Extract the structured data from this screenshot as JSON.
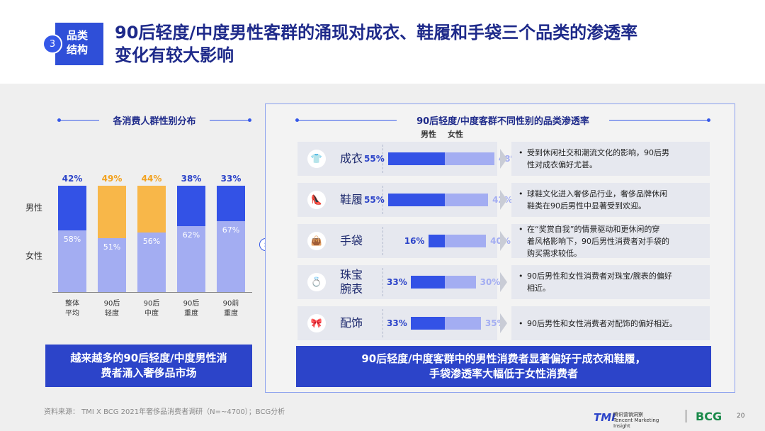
{
  "header": {
    "section_number": "3",
    "section_line1": "品类",
    "section_line2": "结构",
    "title_line1": "90后轻度/中度男性客群的涌现对成衣、鞋履和手袋三个品类的渗透率",
    "title_line2": "变化有较大影响"
  },
  "left": {
    "section_title": "各消费人群性别分布",
    "male_label": "男性",
    "female_label": "女性",
    "callout_line1": "越来越多的90后轻度/中度男性消",
    "callout_line2": "费者涌入奢侈品市场"
  },
  "right": {
    "section_title": "90后轻度/中度客群不同性别的品类渗透率",
    "legend_male": "男性",
    "legend_female": "女性",
    "callout_line1": "90后轻度/中度客群中的男性消费者显著偏好于成衣和鞋履，",
    "callout_line2": "手袋渗透率大幅低于女性消费者",
    "rows": [
      {
        "icon": "shirt-icon",
        "glyph": "👕",
        "name": "成衣",
        "male_label": "55%",
        "female_label": "48%",
        "note_line1": "受到休闲社交和潮流文化的影响，90后男",
        "note_line2": "性对成衣偏好尤甚。"
      },
      {
        "icon": "shoe-icon",
        "glyph": "👠",
        "name": "鞋履",
        "male_label": "55%",
        "female_label": "42%",
        "note_line1": "球鞋文化进入奢侈品行业，奢侈品牌休闲",
        "note_line2": "鞋类在90后男性中显著受到欢迎。"
      },
      {
        "icon": "handbag-icon",
        "glyph": "👜",
        "name": "手袋",
        "male_label": "16%",
        "female_label": "40%",
        "note_line1": "在“奖赏自我”的情景驱动和更休闲的穿",
        "note_line2": "着风格影响下，90后男性消费者对手袋的",
        "note_line3": "购买需求较低。"
      },
      {
        "icon": "ring-icon",
        "glyph": "💍",
        "name_line1": "珠宝",
        "name_line2": "腕表",
        "male_label": "33%",
        "female_label": "30%",
        "note_line1": "90后男性和女性消费者对珠宝/腕表的偏好",
        "note_line2": "相近。"
      },
      {
        "icon": "accessory-icon",
        "glyph": "🎀",
        "name": "配饰",
        "male_label": "33%",
        "female_label": "35%",
        "note_line1": "90后男性和女性消费者对配饰的偏好相近。"
      }
    ]
  },
  "footer": {
    "source": "资料来源：  TMI X BCG 2021年奢侈品消费者调研（N=~4700）；BCG分析",
    "logo_tmi": "TMI",
    "logo_tmi_sub": "腾讯营销洞察 Tencent Marketing Insight",
    "logo_bcg": "BCG",
    "page": "20"
  },
  "colors": {
    "male_dark": "#3352e6",
    "male_highlight": "#f8b749",
    "female": "#a3adf2",
    "female_highlight": "#f9c566",
    "accent": "#2c44c9"
  },
  "chart_data": [
    {
      "type": "bar",
      "title": "各消费人群性别分布",
      "categories": [
        "整体\n平均",
        "90后\n轻度",
        "90后\n中度",
        "90后\n重度",
        "90前\n重度"
      ],
      "series": [
        {
          "name": "男性",
          "values": [
            42,
            49,
            44,
            38,
            33
          ]
        },
        {
          "name": "女性",
          "values": [
            58,
            51,
            56,
            62,
            67
          ]
        }
      ],
      "stacked": true,
      "ylim": [
        0,
        100
      ],
      "unit": "%",
      "highlighted_categories": [
        "90后\n轻度",
        "90后\n中度"
      ]
    },
    {
      "type": "bar",
      "title": "90后轻度/中度客群不同性别的品类渗透率",
      "categories": [
        "成衣",
        "鞋履",
        "手袋",
        "珠宝腕表",
        "配饰"
      ],
      "series": [
        {
          "name": "男性",
          "values": [
            55,
            55,
            16,
            33,
            33
          ]
        },
        {
          "name": "女性",
          "values": [
            48,
            42,
            40,
            30,
            35
          ]
        }
      ],
      "orientation": "horizontal-diverging",
      "unit": "%"
    }
  ]
}
